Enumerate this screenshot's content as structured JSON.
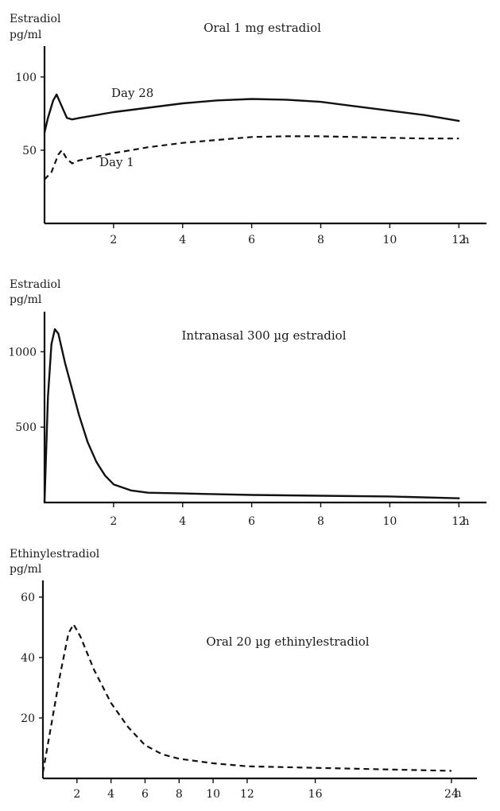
{
  "chart_data": [
    {
      "type": "line",
      "title": "Oral 1 mg estradiol",
      "ylabel": [
        "Estradiol",
        "pg/ml"
      ],
      "xunit": "h",
      "xlim": [
        0,
        12.8
      ],
      "ylim": [
        0,
        120
      ],
      "xticks": [
        2,
        4,
        6,
        8,
        10,
        12
      ],
      "yticks": [
        50,
        100
      ],
      "series": [
        {
          "name": "Day 28",
          "style": "solid",
          "x": [
            0,
            0.1,
            0.25,
            0.35,
            0.5,
            0.65,
            0.8,
            1,
            2,
            3,
            4,
            5,
            6,
            7,
            8,
            9,
            10,
            11,
            12
          ],
          "y": [
            62,
            72,
            84,
            88,
            80,
            72,
            71,
            72,
            76,
            79,
            82,
            84,
            85,
            84.5,
            83,
            80,
            77,
            74,
            70
          ]
        },
        {
          "name": "Day 1",
          "style": "dashed",
          "x": [
            0,
            0.2,
            0.4,
            0.5,
            0.65,
            0.8,
            1,
            2,
            3,
            4,
            5,
            6,
            7,
            8,
            9,
            10,
            11,
            12
          ],
          "y": [
            30,
            35,
            47,
            50,
            44,
            41,
            43,
            48,
            52,
            55,
            57,
            59,
            59.5,
            59.5,
            59,
            58.5,
            58,
            58
          ]
        }
      ],
      "annotations": [
        "Day 28",
        "Day 1"
      ]
    },
    {
      "type": "line",
      "title": "Intranasal 300 µg estradiol",
      "ylabel": [
        "Estradiol",
        "pg/ml"
      ],
      "xunit": "h",
      "xlim": [
        0,
        12.8
      ],
      "ylim": [
        0,
        1250
      ],
      "xticks": [
        2,
        4,
        6,
        8,
        10,
        12
      ],
      "yticks": [
        500,
        1000
      ],
      "series": [
        {
          "name": "Intranasal",
          "style": "solid",
          "x": [
            0,
            0.1,
            0.2,
            0.3,
            0.4,
            0.6,
            0.8,
            1,
            1.25,
            1.5,
            1.75,
            2,
            2.5,
            3,
            4,
            5,
            6,
            8,
            10,
            12
          ],
          "y": [
            0,
            700,
            1050,
            1150,
            1120,
            920,
            750,
            580,
            400,
            270,
            180,
            120,
            80,
            65,
            60,
            55,
            50,
            45,
            40,
            28
          ]
        }
      ]
    },
    {
      "type": "line",
      "title": "Oral 20 µg ethinylestradiol",
      "ylabel": [
        "Ethinylestradiol",
        "pg/ml"
      ],
      "xunit": "h",
      "xlim": [
        0,
        25.5
      ],
      "ylim": [
        0,
        65
      ],
      "xticks": [
        2,
        4,
        6,
        8,
        10,
        12,
        16,
        24
      ],
      "yticks": [
        20,
        40,
        60
      ],
      "series": [
        {
          "name": "Ethinylestradiol",
          "style": "dashed",
          "x": [
            0,
            0.5,
            1,
            1.5,
            1.8,
            2.2,
            3,
            4,
            5,
            6,
            7,
            8,
            10,
            12,
            16,
            20,
            24
          ],
          "y": [
            2,
            18,
            34,
            48,
            51,
            47,
            36,
            25,
            17,
            11,
            8,
            6.5,
            5,
            4,
            3.5,
            3,
            2.5
          ]
        }
      ]
    }
  ]
}
